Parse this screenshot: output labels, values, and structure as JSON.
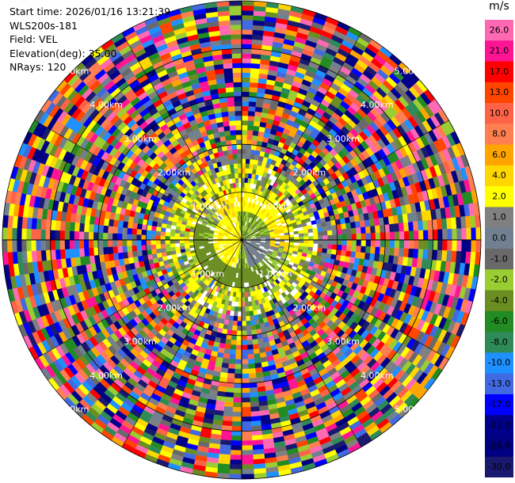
{
  "header": {
    "start_time": "Start time: 2026/01/16 13:21:39",
    "instrument": "WLS200s-181",
    "field": "Field: VEL",
    "elevation": "Elevation(deg): 35.00",
    "nrays": "NRays: 120"
  },
  "colorbar": {
    "unit": "m/s",
    "bins": [
      {
        "label": "26.0",
        "color": "#ff69b4"
      },
      {
        "label": "21.0",
        "color": "#ff1493"
      },
      {
        "label": "17.0",
        "color": "#ff0000"
      },
      {
        "label": "13.0",
        "color": "#ff4500"
      },
      {
        "label": "10.0",
        "color": "#ff6347"
      },
      {
        "label": "8.0",
        "color": "#ff7f50"
      },
      {
        "label": "6.0",
        "color": "#ffa500"
      },
      {
        "label": "4.0",
        "color": "#ffd700"
      },
      {
        "label": "2.0",
        "color": "#ffff00"
      },
      {
        "label": "1.0",
        "color": "#808080"
      },
      {
        "label": "0.0",
        "color": "#708090"
      },
      {
        "label": "-1.0",
        "color": "#696969"
      },
      {
        "label": "-2.0",
        "color": "#9acd32"
      },
      {
        "label": "-4.0",
        "color": "#6b8e23"
      },
      {
        "label": "-6.0",
        "color": "#228b22"
      },
      {
        "label": "-8.0",
        "color": "#2e8b57"
      },
      {
        "label": "-10.0",
        "color": "#1e90ff"
      },
      {
        "label": "-13.0",
        "color": "#4169e1"
      },
      {
        "label": "-17.0",
        "color": "#0000ff"
      },
      {
        "label": "-21.0",
        "color": "#00008b"
      },
      {
        "label": "-26.0",
        "color": "#000080"
      },
      {
        "label": "-30.0",
        "color": "#191970"
      }
    ]
  },
  "chart_data": {
    "type": "heatmap",
    "projection": "polar-ppi",
    "nrays": 120,
    "range_km_max": 5.0,
    "range_rings_km": [
      1,
      2,
      3,
      4,
      5
    ],
    "ring_labels": [
      "1.00km",
      "2.00km",
      "3.00km",
      "4.00km",
      "5.00km"
    ],
    "grid": true,
    "colorbar_placement": "right",
    "vmin": -30.0,
    "vmax": 26.0
  }
}
